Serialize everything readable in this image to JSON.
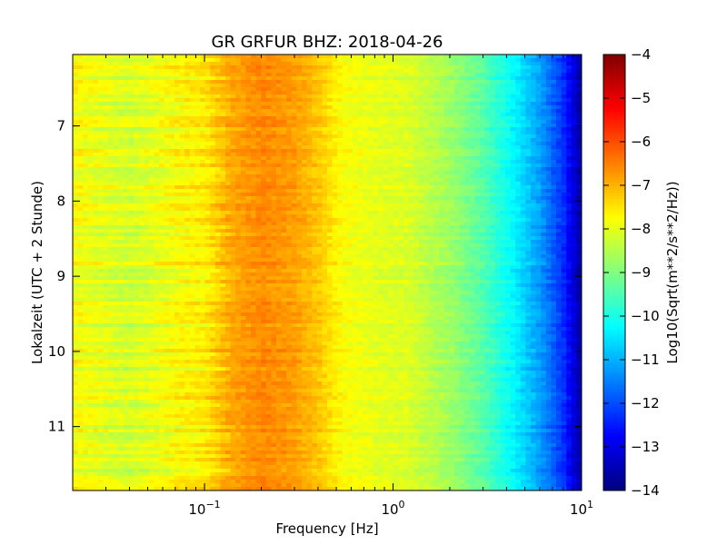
{
  "chart_data": {
    "type": "heatmap",
    "title": "GR GRFUR BHZ: 2018-04-26",
    "xlabel": "Frequency [Hz]",
    "ylabel": "Lokalzeit (UTC + 2 Stunde)",
    "xscale": "log",
    "xlim": [
      0.02,
      10
    ],
    "ylim": [
      6.05,
      11.85
    ],
    "y_inverted": true,
    "x_ticks": [
      {
        "value": 0.1,
        "base": "10",
        "exp": "−1"
      },
      {
        "value": 1,
        "base": "10",
        "exp": "0"
      },
      {
        "value": 10,
        "base": "10",
        "exp": "1"
      }
    ],
    "y_ticks": [
      {
        "value": 7,
        "label": "7"
      },
      {
        "value": 8,
        "label": "8"
      },
      {
        "value": 9,
        "label": "9"
      },
      {
        "value": 10,
        "label": "10"
      },
      {
        "value": 11,
        "label": "11"
      }
    ],
    "colorbar": {
      "label": "Log10(Sqrt(m**2/s**2/Hz))",
      "min": -14,
      "max": -4,
      "colormap": "jet",
      "ticks": [
        {
          "value": -4,
          "label": "−4"
        },
        {
          "value": -5,
          "label": "−5"
        },
        {
          "value": -6,
          "label": "−6"
        },
        {
          "value": -7,
          "label": "−7"
        },
        {
          "value": -8,
          "label": "−8"
        },
        {
          "value": -9,
          "label": "−9"
        },
        {
          "value": -10,
          "label": "−10"
        },
        {
          "value": -11,
          "label": "−11"
        },
        {
          "value": -12,
          "label": "−12"
        },
        {
          "value": -13,
          "label": "−13"
        },
        {
          "value": -14,
          "label": "−14"
        }
      ]
    },
    "frequency_profile": [
      {
        "freq": 0.02,
        "value": -7.8
      },
      {
        "freq": 0.04,
        "value": -8.2
      },
      {
        "freq": 0.06,
        "value": -7.9
      },
      {
        "freq": 0.08,
        "value": -7.7
      },
      {
        "freq": 0.1,
        "value": -7.6
      },
      {
        "freq": 0.14,
        "value": -6.9
      },
      {
        "freq": 0.2,
        "value": -6.6
      },
      {
        "freq": 0.3,
        "value": -6.8
      },
      {
        "freq": 0.4,
        "value": -7.2
      },
      {
        "freq": 0.55,
        "value": -7.8
      },
      {
        "freq": 0.8,
        "value": -8.0
      },
      {
        "freq": 1.2,
        "value": -8.1
      },
      {
        "freq": 2,
        "value": -8.7
      },
      {
        "freq": 3,
        "value": -9.4
      },
      {
        "freq": 4.5,
        "value": -10.4
      },
      {
        "freq": 6,
        "value": -11.2
      },
      {
        "freq": 8,
        "value": -12.3
      },
      {
        "freq": 10,
        "value": -13.7
      }
    ]
  }
}
